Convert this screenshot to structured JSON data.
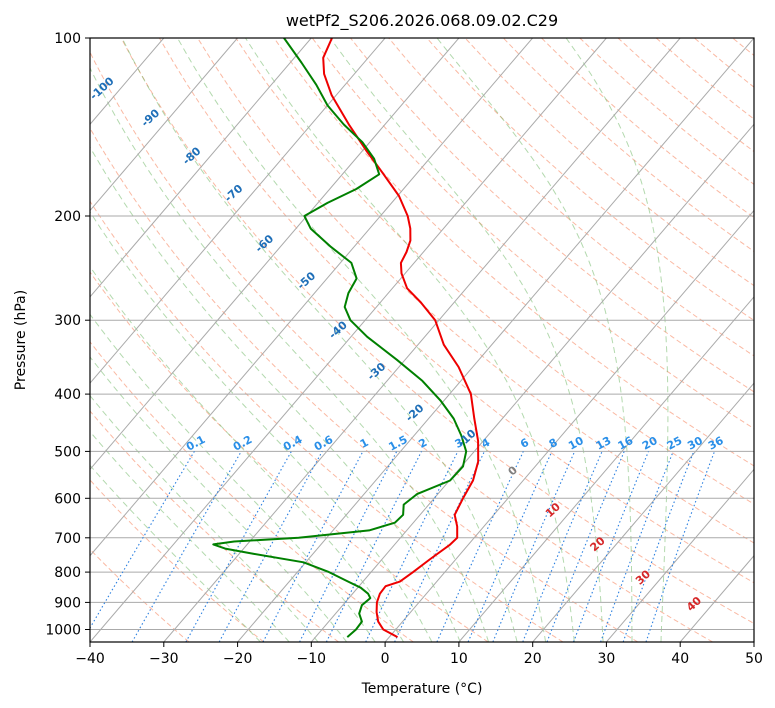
{
  "chart_data": {
    "type": "line",
    "subtype": "skew-T log-P diagram",
    "title": "wetPf2_S206.2026.068.09.02.C29",
    "xlabel": "Temperature (°C)",
    "ylabel": "Pressure (hPa)",
    "xlim": [
      -40,
      50
    ],
    "ylim": [
      1050,
      100
    ],
    "xticks": [
      "−40",
      "−30",
      "−20",
      "−10",
      "0",
      "10",
      "20",
      "30",
      "40",
      "50"
    ],
    "xtick_values": [
      -40,
      -30,
      -20,
      -10,
      0,
      10,
      20,
      30,
      40,
      50
    ],
    "yticks": [
      "1000",
      "900",
      "800",
      "700",
      "600",
      "500",
      "400",
      "300",
      "200",
      "100"
    ],
    "ytick_values": [
      1000,
      900,
      800,
      700,
      600,
      500,
      400,
      300,
      200,
      100
    ],
    "mixing_ratio_labels": [
      "0.1",
      "0.2",
      "0.4",
      "0.6",
      "1",
      "1.5",
      "2",
      "3",
      "4",
      "6",
      "8",
      "10",
      "13",
      "16",
      "20",
      "25",
      "30",
      "36"
    ],
    "mixing_ratio_values": [
      0.1,
      0.2,
      0.4,
      0.6,
      1,
      1.5,
      2,
      3,
      4,
      6,
      8,
      10,
      13,
      16,
      20,
      25,
      30,
      36
    ],
    "isotherm_labels": [
      "-100",
      "-90",
      "-80",
      "-70",
      "-60",
      "-50",
      "-40",
      "-30",
      "-20",
      "-10",
      "0",
      "10",
      "20",
      "30",
      "40"
    ],
    "isotherm_values": [
      -100,
      -90,
      -80,
      -70,
      -60,
      -50,
      -40,
      -30,
      -20,
      -10,
      0,
      10,
      20,
      30,
      40
    ],
    "series": [
      {
        "name": "Temperature",
        "color": "#ee0000",
        "points": [
          {
            "p": 1030,
            "t": 1.1
          },
          {
            "p": 1000,
            "t": -1.7
          },
          {
            "p": 970,
            "t": -3.3
          },
          {
            "p": 935,
            "t": -4.6
          },
          {
            "p": 900,
            "t": -5.7
          },
          {
            "p": 870,
            "t": -6.3
          },
          {
            "p": 845,
            "t": -6.4
          },
          {
            "p": 830,
            "t": -5.0
          },
          {
            "p": 800,
            "t": -4.3
          },
          {
            "p": 760,
            "t": -3.5
          },
          {
            "p": 720,
            "t": -2.5
          },
          {
            "p": 700,
            "t": -2.3
          },
          {
            "p": 670,
            "t": -3.6
          },
          {
            "p": 640,
            "t": -5.3
          },
          {
            "p": 600,
            "t": -6.1
          },
          {
            "p": 560,
            "t": -6.8
          },
          {
            "p": 520,
            "t": -8.3
          },
          {
            "p": 480,
            "t": -10.7
          },
          {
            "p": 440,
            "t": -13.8
          },
          {
            "p": 400,
            "t": -17.1
          },
          {
            "p": 360,
            "t": -21.9
          },
          {
            "p": 330,
            "t": -26.5
          },
          {
            "p": 300,
            "t": -30.5
          },
          {
            "p": 280,
            "t": -34.5
          },
          {
            "p": 265,
            "t": -38.0
          },
          {
            "p": 250,
            "t": -40.5
          },
          {
            "p": 240,
            "t": -41.8
          },
          {
            "p": 230,
            "t": -42.3
          },
          {
            "p": 220,
            "t": -43.1
          },
          {
            "p": 210,
            "t": -44.5
          },
          {
            "p": 200,
            "t": -46.3
          },
          {
            "p": 185,
            "t": -49.8
          },
          {
            "p": 170,
            "t": -54.4
          },
          {
            "p": 155,
            "t": -59.5
          },
          {
            "p": 140,
            "t": -64.9
          },
          {
            "p": 125,
            "t": -70.6
          },
          {
            "p": 115,
            "t": -74.1
          },
          {
            "p": 108,
            "t": -76.1
          },
          {
            "p": 100,
            "t": -77.2
          }
        ]
      },
      {
        "name": "Dewpoint",
        "color": "#008000",
        "points": [
          {
            "p": 1030,
            "t": -5.7
          },
          {
            "p": 1000,
            "t": -5.4
          },
          {
            "p": 970,
            "t": -5.5
          },
          {
            "p": 940,
            "t": -6.8
          },
          {
            "p": 910,
            "t": -7.4
          },
          {
            "p": 885,
            "t": -7.1
          },
          {
            "p": 870,
            "t": -7.9
          },
          {
            "p": 850,
            "t": -9.6
          },
          {
            "p": 830,
            "t": -12.0
          },
          {
            "p": 800,
            "t": -15.7
          },
          {
            "p": 770,
            "t": -20.3
          },
          {
            "p": 745,
            "t": -28.0
          },
          {
            "p": 730,
            "t": -32.5
          },
          {
            "p": 718,
            "t": -34.6
          },
          {
            "p": 710,
            "t": -32.1
          },
          {
            "p": 700,
            "t": -23.8
          },
          {
            "p": 680,
            "t": -15.1
          },
          {
            "p": 660,
            "t": -12.5
          },
          {
            "p": 640,
            "t": -12.3
          },
          {
            "p": 615,
            "t": -13.4
          },
          {
            "p": 590,
            "t": -12.8
          },
          {
            "p": 560,
            "t": -9.9
          },
          {
            "p": 530,
            "t": -9.8
          },
          {
            "p": 500,
            "t": -11.1
          },
          {
            "p": 470,
            "t": -13.6
          },
          {
            "p": 440,
            "t": -16.6
          },
          {
            "p": 410,
            "t": -20.5
          },
          {
            "p": 380,
            "t": -25.2
          },
          {
            "p": 350,
            "t": -31.1
          },
          {
            "p": 320,
            "t": -37.8
          },
          {
            "p": 300,
            "t": -42.0
          },
          {
            "p": 285,
            "t": -44.3
          },
          {
            "p": 270,
            "t": -45.4
          },
          {
            "p": 255,
            "t": -46.0
          },
          {
            "p": 240,
            "t": -48.5
          },
          {
            "p": 225,
            "t": -53.3
          },
          {
            "p": 210,
            "t": -58.0
          },
          {
            "p": 200,
            "t": -60.3
          },
          {
            "p": 190,
            "t": -58.7
          },
          {
            "p": 180,
            "t": -56.4
          },
          {
            "p": 170,
            "t": -55.0
          },
          {
            "p": 160,
            "t": -57.5
          },
          {
            "p": 150,
            "t": -61.0
          },
          {
            "p": 140,
            "t": -65.6
          },
          {
            "p": 130,
            "t": -70.0
          },
          {
            "p": 120,
            "t": -73.9
          },
          {
            "p": 110,
            "t": -78.5
          },
          {
            "p": 100,
            "t": -83.7
          }
        ]
      }
    ]
  }
}
